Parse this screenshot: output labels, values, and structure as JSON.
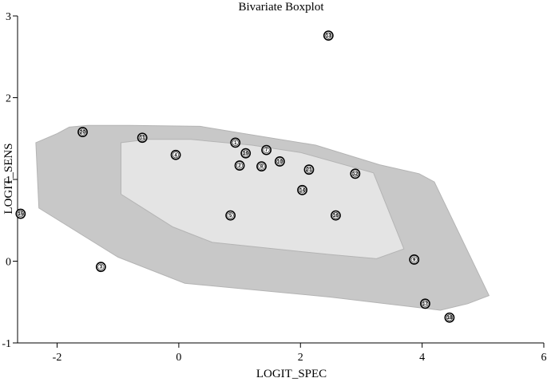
{
  "chart_data": {
    "type": "scatter",
    "title": "Bivariate Boxplot",
    "xlabel": "LOGIT_SPEC",
    "ylabel": "LOGIT_SENS",
    "xlim": [
      -2.65,
      6.0
    ],
    "ylim": [
      -1.0,
      3.0
    ],
    "xticks": [
      -2,
      0,
      2,
      4,
      6
    ],
    "yticks": [
      -1,
      0,
      1,
      2,
      3
    ],
    "grid": false,
    "colors": {
      "outer_region": "#c8c8c8",
      "inner_region": "#e4e4e4",
      "region_edge": "#b4b4b4"
    },
    "outer_region": [
      [
        -2.35,
        1.45
      ],
      [
        -2.0,
        1.56
      ],
      [
        -1.8,
        1.64
      ],
      [
        -1.5,
        1.66
      ],
      [
        -0.8,
        1.66
      ],
      [
        0.35,
        1.65
      ],
      [
        1.0,
        1.57
      ],
      [
        2.25,
        1.42
      ],
      [
        3.3,
        1.18
      ],
      [
        3.95,
        1.07
      ],
      [
        4.2,
        0.97
      ],
      [
        5.1,
        -0.42
      ],
      [
        4.75,
        -0.52
      ],
      [
        4.3,
        -0.6
      ],
      [
        2.5,
        -0.44
      ],
      [
        0.1,
        -0.27
      ],
      [
        -1.0,
        0.05
      ],
      [
        -2.3,
        0.65
      ]
    ],
    "inner_region": [
      [
        -0.95,
        1.45
      ],
      [
        -0.5,
        1.49
      ],
      [
        0.2,
        1.49
      ],
      [
        1.2,
        1.42
      ],
      [
        2.0,
        1.33
      ],
      [
        3.2,
        1.08
      ],
      [
        3.7,
        0.15
      ],
      [
        3.25,
        0.03
      ],
      [
        2.5,
        0.08
      ],
      [
        0.55,
        0.23
      ],
      [
        -0.1,
        0.42
      ],
      [
        -0.95,
        0.82
      ]
    ],
    "points": [
      {
        "id": "1",
        "x": 0.93,
        "y": 1.45
      },
      {
        "id": "2",
        "x": 1.0,
        "y": 1.17
      },
      {
        "id": "3",
        "x": -1.28,
        "y": -0.07
      },
      {
        "id": "4",
        "x": -0.05,
        "y": 1.3
      },
      {
        "id": "5",
        "x": 0.85,
        "y": 0.56
      },
      {
        "id": "7",
        "x": 1.44,
        "y": 1.36
      },
      {
        "id": "8",
        "x": 1.36,
        "y": 1.16
      },
      {
        "id": "9",
        "x": 3.87,
        "y": 0.02
      },
      {
        "id": "10",
        "x": 1.66,
        "y": 1.22
      },
      {
        "id": "11",
        "x": -0.6,
        "y": 1.51
      },
      {
        "id": "12",
        "x": 2.9,
        "y": 1.07
      },
      {
        "id": "13",
        "x": 2.46,
        "y": 2.76
      },
      {
        "id": "14",
        "x": 2.03,
        "y": 0.87
      },
      {
        "id": "15",
        "x": -2.6,
        "y": 0.58
      },
      {
        "id": "16",
        "x": 2.58,
        "y": 0.56
      },
      {
        "id": "17",
        "x": 4.05,
        "y": -0.52
      },
      {
        "id": "18",
        "x": 4.45,
        "y": -0.69
      },
      {
        "id": "19",
        "x": 1.1,
        "y": 1.32
      },
      {
        "id": "20",
        "x": -1.58,
        "y": 1.58
      },
      {
        "id": "21",
        "x": 2.14,
        "y": 1.12
      }
    ]
  }
}
